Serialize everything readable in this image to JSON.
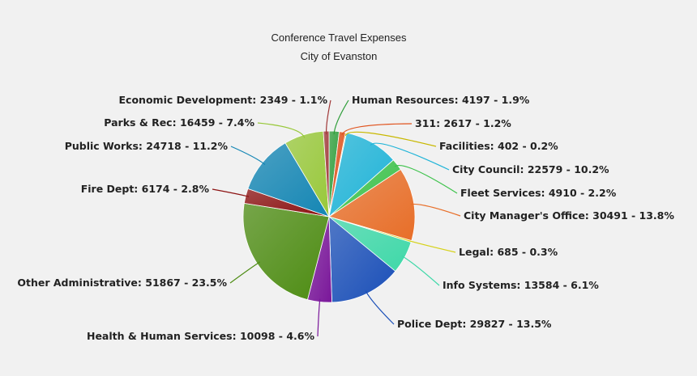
{
  "chart_data": {
    "type": "pie",
    "title": "Conference Travel Expenses",
    "subtitle": "City of Evanston",
    "slices": [
      {
        "label": "Human Resources",
        "value": 4197,
        "percent": "1.9%",
        "color": "#2f9e3a"
      },
      {
        "label": "311",
        "value": 2617,
        "percent": "1.2%",
        "color": "#e0531d"
      },
      {
        "label": "Facilities",
        "value": 402,
        "percent": "0.2%",
        "color": "#c8b800"
      },
      {
        "label": "City Council",
        "value": 22579,
        "percent": "10.2%",
        "color": "#1fb4d8"
      },
      {
        "label": "Fleet Services",
        "value": 4910,
        "percent": "2.2%",
        "color": "#3cc24a"
      },
      {
        "label": "City Manager's Office",
        "value": 30491,
        "percent": "13.8%",
        "color": "#e86e28"
      },
      {
        "label": "Legal",
        "value": 685,
        "percent": "0.3%",
        "color": "#d6d21a"
      },
      {
        "label": "Info Systems",
        "value": 13584,
        "percent": "6.1%",
        "color": "#3ed8a8"
      },
      {
        "label": "Police Dept",
        "value": 29827,
        "percent": "13.5%",
        "color": "#1a4fb8"
      },
      {
        "label": "Health & Human Services",
        "value": 10098,
        "percent": "4.6%",
        "color": "#7a179a"
      },
      {
        "label": "Other Administrative",
        "value": 51867,
        "percent": "23.5%",
        "color": "#4d8c12"
      },
      {
        "label": "Fire Dept",
        "value": 6174,
        "percent": "2.8%",
        "color": "#8c1212"
      },
      {
        "label": "Public Works",
        "value": 24718,
        "percent": "11.2%",
        "color": "#1486b4"
      },
      {
        "label": "Parks & Rec",
        "value": 16459,
        "percent": "7.4%",
        "color": "#98c83a"
      },
      {
        "label": "Economic Development",
        "value": 2349,
        "percent": "1.1%",
        "color": "#a03838"
      }
    ],
    "legend": "none"
  }
}
